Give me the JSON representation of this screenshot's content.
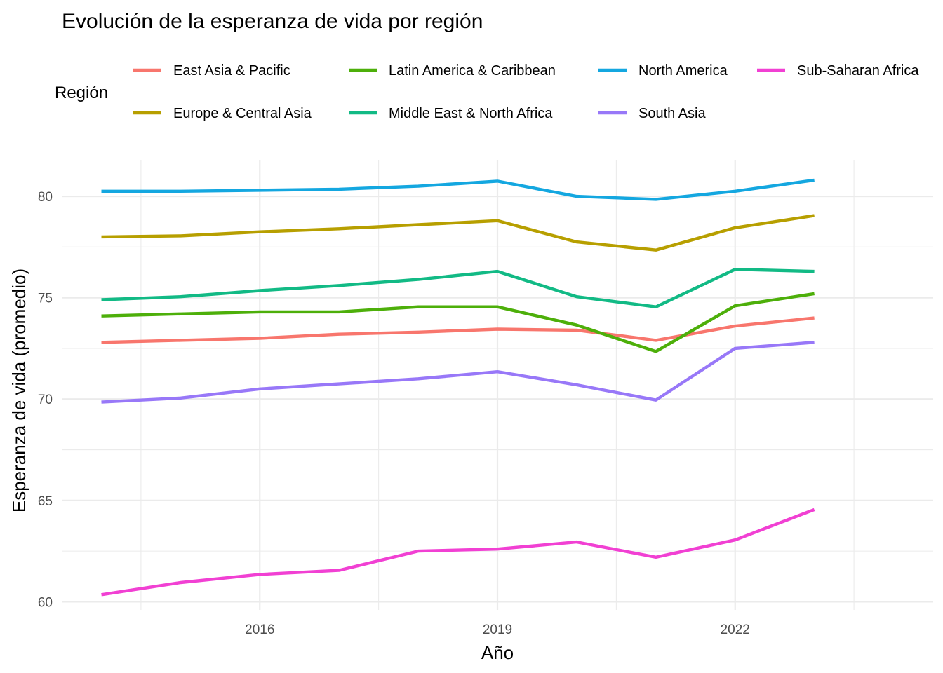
{
  "chart_data": {
    "type": "line",
    "title": "Evolución de la esperanza de vida por región",
    "xlabel": "Año",
    "ylabel": "Esperanza de vida (promedio)",
    "legend_title": "Región",
    "legend_position": "top",
    "grid": true,
    "x": [
      2014,
      2015,
      2016,
      2017,
      2018,
      2019,
      2020,
      2021,
      2022,
      2023
    ],
    "xlim": [
      2013.5,
      2024.5
    ],
    "ylim": [
      59.6,
      81.8
    ],
    "x_ticks": [
      2016,
      2019,
      2022
    ],
    "x_minor_ticks": [
      2014.5,
      2017.5,
      2020.5,
      2023.5
    ],
    "y_ticks": [
      60,
      65,
      70,
      75,
      80
    ],
    "y_minor_ticks": [
      62.5,
      67.5,
      72.5,
      77.5
    ],
    "series": [
      {
        "name": "East Asia & Pacific",
        "color": "#F8766D",
        "values": [
          72.8,
          72.9,
          73.0,
          73.2,
          73.3,
          73.45,
          73.4,
          72.9,
          73.6,
          74.0
        ]
      },
      {
        "name": "Europe & Central Asia",
        "color": "#B79F00",
        "values": [
          78.0,
          78.05,
          78.25,
          78.4,
          78.6,
          78.8,
          77.75,
          77.35,
          78.45,
          79.05
        ]
      },
      {
        "name": "Latin America & Caribbean",
        "color": "#4DAF0A",
        "values": [
          74.1,
          74.2,
          74.3,
          74.3,
          74.55,
          74.55,
          73.65,
          72.35,
          74.6,
          75.2
        ]
      },
      {
        "name": "Middle East & North Africa",
        "color": "#12BA85",
        "values": [
          74.9,
          75.05,
          75.35,
          75.6,
          75.9,
          76.3,
          75.05,
          74.55,
          76.4,
          76.3
        ]
      },
      {
        "name": "North America",
        "color": "#14A7E0",
        "values": [
          80.25,
          80.25,
          80.3,
          80.35,
          80.5,
          80.75,
          80.0,
          79.85,
          80.25,
          80.8
        ]
      },
      {
        "name": "South Asia",
        "color": "#9878F8",
        "values": [
          69.85,
          70.05,
          70.5,
          70.75,
          71.0,
          71.35,
          70.7,
          69.95,
          72.5,
          72.8
        ]
      },
      {
        "name": "Sub-Saharan Africa",
        "color": "#F140D3",
        "values": [
          60.35,
          60.95,
          61.35,
          61.55,
          62.5,
          62.6,
          62.95,
          62.2,
          63.05,
          64.55
        ]
      }
    ]
  }
}
